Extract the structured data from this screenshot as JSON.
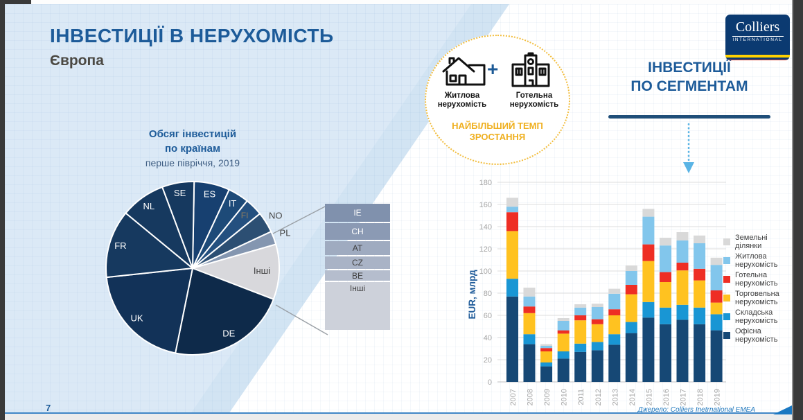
{
  "slide": {
    "title": "ІНВЕСТИЦІЇ В НЕРУХОМІСТЬ",
    "subtitle": "Європа",
    "page_number": "7",
    "source": "Джерело: Colliers Inetrnational EMEA"
  },
  "pie_section": {
    "title_line1": "Обсяг інвестицій",
    "title_line2": "по країнам",
    "subtitle": "перше півріччя, 2019"
  },
  "badge": {
    "item1_line1": "Житлова",
    "item1_line2": "нерухомість",
    "plus": "+",
    "item2_line1": "Готельна",
    "item2_line2": "нерухомість",
    "caption_line1": "НАЙБІЛЬШИЙ ТЕМП",
    "caption_line2": "ЗРОСТАННЯ",
    "house_icon": "house-icon",
    "hotel_icon": "hotel-building-icon",
    "accent_color": "#efaf1e"
  },
  "segments_heading": {
    "line1": "ІНВЕСТИЦІЇ",
    "line2": "ПО СЕГМЕНТАМ",
    "underline_color": "#1f4e79",
    "arrow_icon": "dotted-down-arrow-icon",
    "arrow_color": "#5ab4e5"
  },
  "logo": {
    "name": "Colliers",
    "sub": "INTERNATIONAL",
    "bg_color": "#0b3a71",
    "stripe_yellow": "#ffd200",
    "stripe_red": "#e8402d"
  },
  "detail_box": {
    "items": [
      {
        "label": "IE",
        "height": 26,
        "color": "#8091ad",
        "text_color": "#ffffff",
        "align": "center"
      },
      {
        "label": "CH",
        "height": 24,
        "color": "#8b9ab4",
        "text_color": "#ffffff",
        "align": "center"
      },
      {
        "label": "AT",
        "height": 20,
        "color": "#9fabc0",
        "text_color": "#3f3f3f",
        "align": "center"
      },
      {
        "label": "CZ",
        "height": 18,
        "color": "#a9b3c6",
        "text_color": "#3f3f3f",
        "align": "center"
      },
      {
        "label": "BE",
        "height": 15,
        "color": "#b5bdcd",
        "text_color": "#3f3f3f",
        "align": "center"
      },
      {
        "label": "Інші",
        "height": 69,
        "color": "#cdd1da",
        "text_color": "#3f3f3f",
        "align": "top"
      }
    ]
  },
  "chart_data": [
    {
      "type": "pie",
      "title": "Обсяг інвестицій по країнам",
      "subtitle": "перше півріччя, 2019",
      "note": "slice sizes in degrees, clockwise from 12 o'clock",
      "slices": [
        {
          "label": "ES",
          "start_deg": 1,
          "end_deg": 25,
          "color": "#174070",
          "label_color": "#ffffff",
          "label_r": 0.87
        },
        {
          "label": "IT",
          "start_deg": 25,
          "end_deg": 39,
          "color": "#1d4a78",
          "label_color": "#ffffff",
          "label_r": 0.87
        },
        {
          "label": "FI",
          "start_deg": 39,
          "end_deg": 51,
          "color": "#24507f",
          "label_color": "#8c7b5f",
          "label_r": 0.85,
          "label_size": 12
        },
        {
          "label": "NO",
          "start_deg": 51,
          "end_deg": 65,
          "color": "#2c4f73",
          "label_color": "#404040",
          "label_r": 1.13
        },
        {
          "label": "PL",
          "start_deg": 65,
          "end_deg": 74,
          "color": "#8496b0",
          "label_color": "#404040",
          "label_r": 1.14
        },
        {
          "label": "Інші",
          "start_deg": 74,
          "end_deg": 111,
          "color": "#d8d8dc",
          "label_color": "#404040",
          "label_r": 0.8
        },
        {
          "label": "DE",
          "start_deg": 111,
          "end_deg": 191.5,
          "color": "#0e2a4a",
          "label_color": "#ffffff",
          "label_r": 0.87
        },
        {
          "label": "UK",
          "start_deg": 191.5,
          "end_deg": 264,
          "color": "#123258",
          "label_color": "#ffffff",
          "label_r": 0.87
        },
        {
          "label": "FR",
          "start_deg": 264,
          "end_deg": 309.5,
          "color": "#16395f",
          "label_color": "#ffffff",
          "label_r": 0.87
        },
        {
          "label": "NL",
          "start_deg": 309.5,
          "end_deg": 339.5,
          "color": "#16395f",
          "label_color": "#ffffff",
          "label_r": 0.87
        },
        {
          "label": "SE",
          "start_deg": 339.5,
          "end_deg": 361,
          "color": "#16395f",
          "label_color": "#ffffff",
          "label_r": 0.87
        }
      ]
    },
    {
      "type": "bar-stacked",
      "ylabel": "EUR, млрд",
      "ylim": [
        0,
        180
      ],
      "ytick_step": 20,
      "categories": [
        "2007",
        "2008",
        "2009",
        "2010",
        "2011",
        "2012",
        "2013",
        "2014",
        "2015",
        "2016",
        "2017",
        "2018",
        "2019"
      ],
      "series": [
        {
          "name": "Офісна нерухомість",
          "color": "#164875",
          "values": [
            77,
            34,
            14,
            21,
            27,
            28.5,
            33.5,
            44,
            58,
            52,
            56,
            52,
            46.5
          ]
        },
        {
          "name": "Складська нерухомість",
          "color": "#1996d4",
          "values": [
            16,
            9,
            3.5,
            6.5,
            7.5,
            7.5,
            9.5,
            10,
            14,
            15,
            13.5,
            15,
            14.5
          ]
        },
        {
          "name": "Торговельна нерухомість",
          "color": "#ffc220",
          "values": [
            43,
            19,
            10,
            16,
            21,
            16,
            17,
            25,
            37,
            23,
            31,
            24.5,
            10.5
          ]
        },
        {
          "name": "Готельна нерухомість",
          "color": "#ee2e24",
          "values": [
            17,
            6,
            3,
            3,
            4.5,
            4.5,
            5.5,
            8.5,
            15,
            9,
            7,
            10.5,
            11
          ]
        },
        {
          "name": "Житлова нерухомість",
          "color": "#82c6ec",
          "values": [
            5,
            9,
            2,
            8.5,
            7,
            11,
            14,
            12.5,
            25,
            24,
            20,
            23,
            23
          ]
        },
        {
          "name": "Земельні ділянки",
          "color": "#d9d9d9",
          "values": [
            8,
            8,
            1.5,
            2.5,
            3,
            3,
            4.5,
            5,
            7,
            7,
            7.5,
            7,
            6.5
          ]
        }
      ],
      "legend": [
        {
          "lines": [
            "Земельні",
            "ділянки"
          ],
          "color": "#d9d9d9"
        },
        {
          "lines": [
            "Житлова",
            "нерухомість"
          ],
          "color": "#82c6ec"
        },
        {
          "lines": [
            "Готельна",
            "нерухомість"
          ],
          "color": "#ee2e24"
        },
        {
          "lines": [
            "Торговельна",
            "нерухомість"
          ],
          "color": "#ffc220"
        },
        {
          "lines": [
            "Складська",
            "нерухомість"
          ],
          "color": "#1996d4"
        },
        {
          "lines": [
            "Офісна",
            "нерухомість"
          ],
          "color": "#164875"
        }
      ]
    }
  ]
}
